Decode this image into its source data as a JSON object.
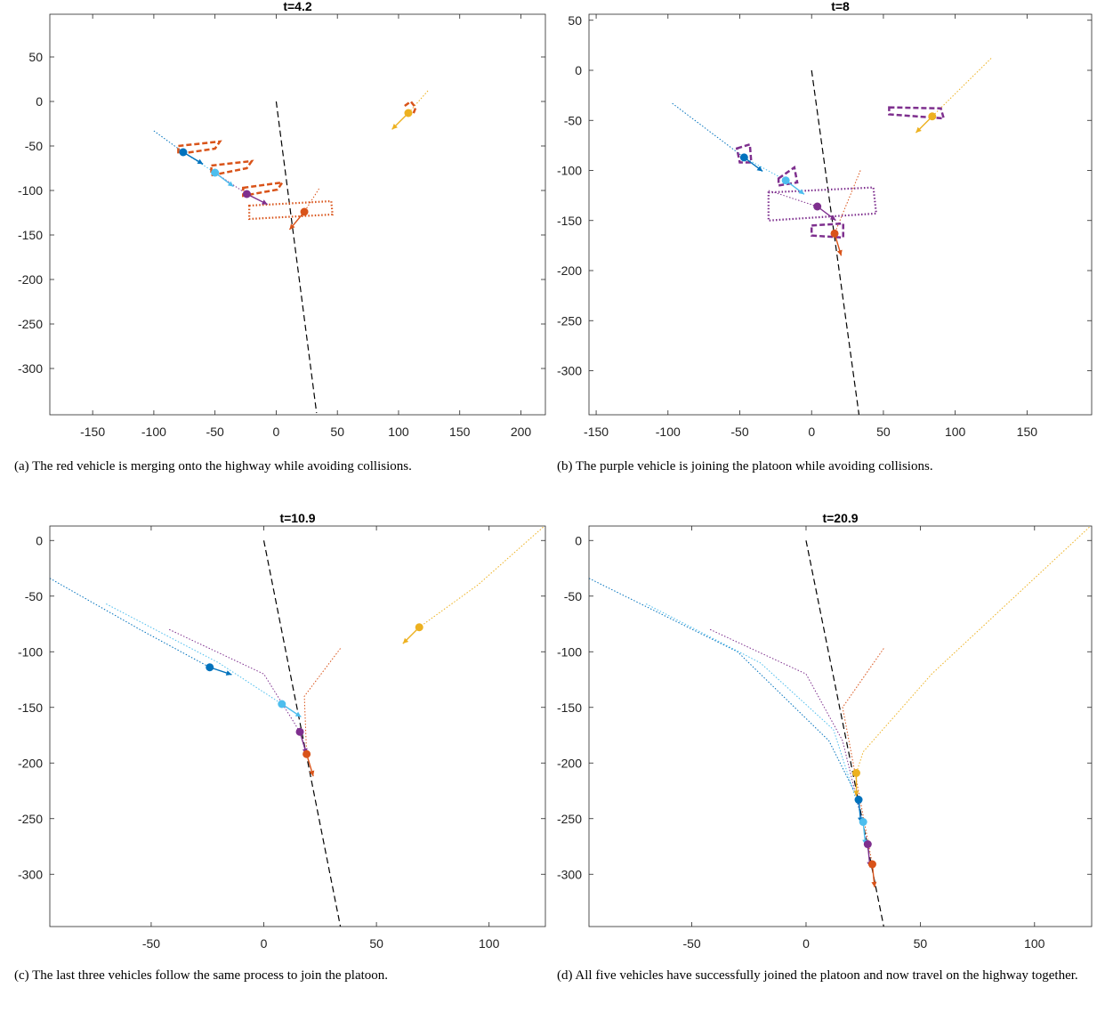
{
  "colors": {
    "dark_blue": "#0072BD",
    "red": "#D95319",
    "yellow": "#EDB120",
    "purple": "#7E2F8E",
    "light_blue": "#4DBEEE",
    "highway": "#000000"
  },
  "chart_data": [
    {
      "type": "scatter",
      "title": "t=4.2",
      "caption": "(a) The red vehicle is merging onto the highway while avoiding collisions.",
      "xlim": [
        -185,
        220
      ],
      "ylim": [
        -352,
        98
      ],
      "xticks": [
        -150,
        -100,
        -50,
        0,
        50,
        100,
        150,
        200
      ],
      "yticks": [
        50,
        0,
        -50,
        -100,
        -150,
        -200,
        -250,
        -300
      ],
      "highway": [
        [
          0,
          0
        ],
        [
          33,
          -350
        ]
      ],
      "vehicles": [
        {
          "color": "dark_blue",
          "pos": [
            -76,
            -57
          ],
          "heading": [
            2,
            -1.2
          ],
          "trail": [
            [
              -100,
              -33
            ],
            [
              -76,
              -57
            ]
          ]
        },
        {
          "color": "light_blue",
          "pos": [
            -50,
            -80
          ],
          "heading": [
            2,
            -1.5
          ],
          "trail": [
            [
              -76,
              -57
            ],
            [
              -50,
              -80
            ]
          ]
        },
        {
          "color": "purple",
          "pos": [
            -24,
            -104
          ],
          "heading": [
            2,
            -1
          ],
          "trail": [
            [
              -50,
              -80
            ],
            [
              -24,
              -104
            ]
          ]
        },
        {
          "color": "red",
          "pos": [
            23,
            -124
          ],
          "heading": [
            -1,
            -1.2
          ],
          "trail": [
            [
              35,
              -98
            ],
            [
              23,
              -124
            ]
          ]
        },
        {
          "color": "yellow",
          "pos": [
            108,
            -13
          ],
          "heading": [
            -1,
            -1
          ],
          "trail": [
            [
              124,
              12
            ],
            [
              108,
              -13
            ]
          ]
        }
      ],
      "boxes": [
        {
          "color": "red",
          "style": "dashed",
          "pts": [
            [
              -80,
              -50
            ],
            [
              -46,
              -45
            ],
            [
              -50,
              -53
            ],
            [
              -80,
              -59
            ]
          ]
        },
        {
          "color": "red",
          "style": "dashed",
          "pts": [
            [
              -53,
              -72
            ],
            [
              -20,
              -67
            ],
            [
              -24,
              -75
            ],
            [
              -53,
              -83
            ]
          ]
        },
        {
          "color": "red",
          "style": "dashed",
          "pts": [
            [
              -27,
              -97
            ],
            [
              5,
              -91
            ],
            [
              1,
              -99
            ],
            [
              -27,
              -106
            ]
          ]
        },
        {
          "color": "red",
          "style": "dotted",
          "pts": [
            [
              -22,
              -117
            ],
            [
              45,
              -112
            ],
            [
              46,
              -127
            ],
            [
              -22,
              -132
            ]
          ]
        },
        {
          "color": "red",
          "style": "dashed-arc",
          "pts": [
            [
              105,
              -5
            ],
            [
              110,
              0
            ],
            [
              114,
              -7
            ],
            [
              112,
              -14
            ]
          ]
        }
      ]
    },
    {
      "type": "scatter",
      "title": "t=8",
      "caption": "(b) The purple vehicle is joining the platoon while avoiding collisions.",
      "xlim": [
        -155,
        195
      ],
      "ylim": [
        -344,
        56
      ],
      "xticks": [
        -150,
        -100,
        -50,
        0,
        50,
        100,
        150
      ],
      "yticks": [
        50,
        0,
        -50,
        -100,
        -150,
        -200,
        -250,
        -300
      ],
      "highway": [
        [
          0,
          0
        ],
        [
          33,
          -344
        ]
      ],
      "vehicles": [
        {
          "color": "dark_blue",
          "pos": [
            -47,
            -87
          ],
          "heading": [
            2,
            -1.5
          ],
          "trail": [
            [
              -97,
              -33
            ],
            [
              -47,
              -87
            ]
          ]
        },
        {
          "color": "light_blue",
          "pos": [
            -18,
            -110
          ],
          "heading": [
            2,
            -1.5
          ],
          "trail": [
            [
              -47,
              -87
            ],
            [
              -18,
              -110
            ]
          ]
        },
        {
          "color": "purple",
          "pos": [
            4,
            -136
          ],
          "heading": [
            2,
            -1.5
          ],
          "trail": [
            [
              -30,
              -120
            ],
            [
              4,
              -136
            ]
          ]
        },
        {
          "color": "red",
          "pos": [
            16,
            -163
          ],
          "heading": [
            0.3,
            -1
          ],
          "trail": [
            [
              34,
              -100
            ],
            [
              16,
              -163
            ]
          ]
        },
        {
          "color": "yellow",
          "pos": [
            84,
            -46
          ],
          "heading": [
            -1,
            -1
          ],
          "trail": [
            [
              125,
              12
            ],
            [
              84,
              -46
            ]
          ]
        }
      ],
      "boxes": [
        {
          "color": "purple",
          "style": "dashed",
          "pts": [
            [
              -52,
              -78
            ],
            [
              -43,
              -74
            ],
            [
              -42,
              -92
            ],
            [
              -50,
              -92
            ]
          ]
        },
        {
          "color": "purple",
          "style": "dashed",
          "pts": [
            [
              -23,
              -108
            ],
            [
              -12,
              -97
            ],
            [
              -10,
              -112
            ],
            [
              -23,
              -115
            ]
          ]
        },
        {
          "color": "purple",
          "style": "dotted",
          "pts": [
            [
              -30,
              -122
            ],
            [
              43,
              -117
            ],
            [
              45,
              -143
            ],
            [
              -30,
              -150
            ]
          ]
        },
        {
          "color": "purple",
          "style": "dashed",
          "pts": [
            [
              0,
              -155
            ],
            [
              22,
              -153
            ],
            [
              22,
              -167
            ],
            [
              0,
              -165
            ]
          ]
        },
        {
          "color": "purple",
          "style": "dashed",
          "pts": [
            [
              54,
              -37
            ],
            [
              90,
              -38
            ],
            [
              92,
              -48
            ],
            [
              54,
              -44
            ]
          ]
        }
      ]
    },
    {
      "type": "scatter",
      "title": "t=10.9",
      "caption": "(c) The last three vehicles follow the same process to join the platoon.",
      "xlim": [
        -95,
        125
      ],
      "ylim": [
        -347,
        13
      ],
      "xticks": [
        -50,
        0,
        50,
        100
      ],
      "yticks": [
        0,
        -50,
        -100,
        -150,
        -200,
        -250,
        -300
      ],
      "highway": [
        [
          0,
          0
        ],
        [
          34,
          -347
        ]
      ],
      "vehicles": [
        {
          "color": "dark_blue",
          "pos": [
            -24,
            -114
          ],
          "heading": [
            3,
            -1
          ],
          "trail": [
            [
              -95,
              -34
            ],
            [
              -55,
              -80
            ],
            [
              -24,
              -114
            ]
          ]
        },
        {
          "color": "light_blue",
          "pos": [
            8,
            -147
          ],
          "heading": [
            1.5,
            -1
          ],
          "trail": [
            [
              -70,
              -57
            ],
            [
              -20,
              -110
            ],
            [
              8,
              -147
            ]
          ]
        },
        {
          "color": "purple",
          "pos": [
            16,
            -172
          ],
          "heading": [
            0.3,
            -1
          ],
          "trail": [
            [
              -42,
              -80
            ],
            [
              0,
              -120
            ],
            [
              16,
              -172
            ]
          ]
        },
        {
          "color": "red",
          "pos": [
            19,
            -192
          ],
          "heading": [
            0.3,
            -1
          ],
          "trail": [
            [
              34,
              -97
            ],
            [
              18,
              -140
            ],
            [
              19,
              -192
            ]
          ]
        },
        {
          "color": "yellow",
          "pos": [
            69,
            -78
          ],
          "heading": [
            -1,
            -1
          ],
          "trail": [
            [
              124,
              12
            ],
            [
              95,
              -40
            ],
            [
              69,
              -78
            ]
          ]
        }
      ],
      "boxes": []
    },
    {
      "type": "scatter",
      "title": "t=20.9",
      "caption": "(d) All five vehicles have successfully joined the platoon and now travel on the highway together.",
      "xlim": [
        -95,
        125
      ],
      "ylim": [
        -347,
        13
      ],
      "xticks": [
        -50,
        0,
        50,
        100
      ],
      "yticks": [
        0,
        -50,
        -100,
        -150,
        -200,
        -250,
        -300
      ],
      "highway": [
        [
          0,
          0
        ],
        [
          34,
          -347
        ]
      ],
      "vehicles": [
        {
          "color": "yellow",
          "pos": [
            22,
            -209
          ],
          "heading": [
            0,
            -1
          ],
          "trail": [
            [
              124,
              12
            ],
            [
              55,
              -120
            ],
            [
              25,
              -190
            ],
            [
              22,
              -209
            ]
          ]
        },
        {
          "color": "dark_blue",
          "pos": [
            23,
            -233
          ],
          "heading": [
            0.1,
            -1
          ],
          "trail": [
            [
              -95,
              -34
            ],
            [
              -30,
              -100
            ],
            [
              10,
              -180
            ],
            [
              23,
              -233
            ]
          ]
        },
        {
          "color": "light_blue",
          "pos": [
            25,
            -253
          ],
          "heading": [
            0.1,
            -1
          ],
          "trail": [
            [
              -70,
              -57
            ],
            [
              -20,
              -110
            ],
            [
              12,
              -170
            ],
            [
              25,
              -253
            ]
          ]
        },
        {
          "color": "purple",
          "pos": [
            27,
            -273
          ],
          "heading": [
            0.1,
            -1
          ],
          "trail": [
            [
              -42,
              -80
            ],
            [
              0,
              -120
            ],
            [
              16,
              -180
            ],
            [
              27,
              -273
            ]
          ]
        },
        {
          "color": "red",
          "pos": [
            29,
            -291
          ],
          "heading": [
            0.1,
            -1
          ],
          "trail": [
            [
              34,
              -97
            ],
            [
              16,
              -150
            ],
            [
              29,
              -291
            ]
          ]
        }
      ],
      "boxes": []
    }
  ]
}
